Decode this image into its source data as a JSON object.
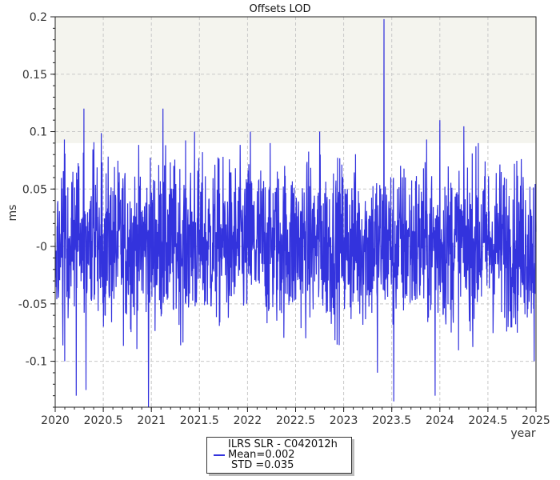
{
  "chart_data": {
    "type": "line",
    "title": "Offsets LOD",
    "xlabel": "year",
    "ylabel": "ms",
    "xlim": [
      2020,
      2025
    ],
    "ylim": [
      -0.14,
      0.2
    ],
    "xticks": [
      "2020",
      "2020.5",
      "2021",
      "2021.5",
      "2022",
      "2022.5",
      "2023",
      "2023.5",
      "2024",
      "2024.5",
      "2025"
    ],
    "yticks": [
      "0.2",
      "0.15",
      "0.1",
      "0.05",
      "-0",
      "-0.05",
      "-0.1"
    ],
    "grid": true,
    "shaded_bands": [
      [
        0.09,
        0.2
      ]
    ],
    "legend_position": "bottom-center",
    "series": [
      {
        "name": "ILRS SLR - C042012h",
        "color": "#3333dd",
        "stats": {
          "mean": 0.002,
          "std": 0.035
        },
        "peaks": [
          {
            "x": 2020.3,
            "y": 0.12
          },
          {
            "x": 2021.12,
            "y": 0.12
          },
          {
            "x": 2021.45,
            "y": 0.1
          },
          {
            "x": 2022.03,
            "y": 0.1
          },
          {
            "x": 2022.75,
            "y": 0.1
          },
          {
            "x": 2023.42,
            "y": 0.198
          },
          {
            "x": 2024.0,
            "y": 0.11
          },
          {
            "x": 2024.4,
            "y": 0.09
          },
          {
            "x": 2020.22,
            "y": -0.13
          },
          {
            "x": 2020.32,
            "y": -0.125
          },
          {
            "x": 2020.97,
            "y": -0.14
          },
          {
            "x": 2023.52,
            "y": -0.135
          },
          {
            "x": 2023.95,
            "y": -0.13
          },
          {
            "x": 2023.35,
            "y": -0.11
          },
          {
            "x": 2020.1,
            "y": -0.1
          },
          {
            "x": 2024.98,
            "y": -0.1
          }
        ]
      }
    ]
  },
  "legend": {
    "name": "ILRS SLR - C042012h",
    "mean_text": "Mean=0.002",
    "std_text": "STD =0.035"
  }
}
